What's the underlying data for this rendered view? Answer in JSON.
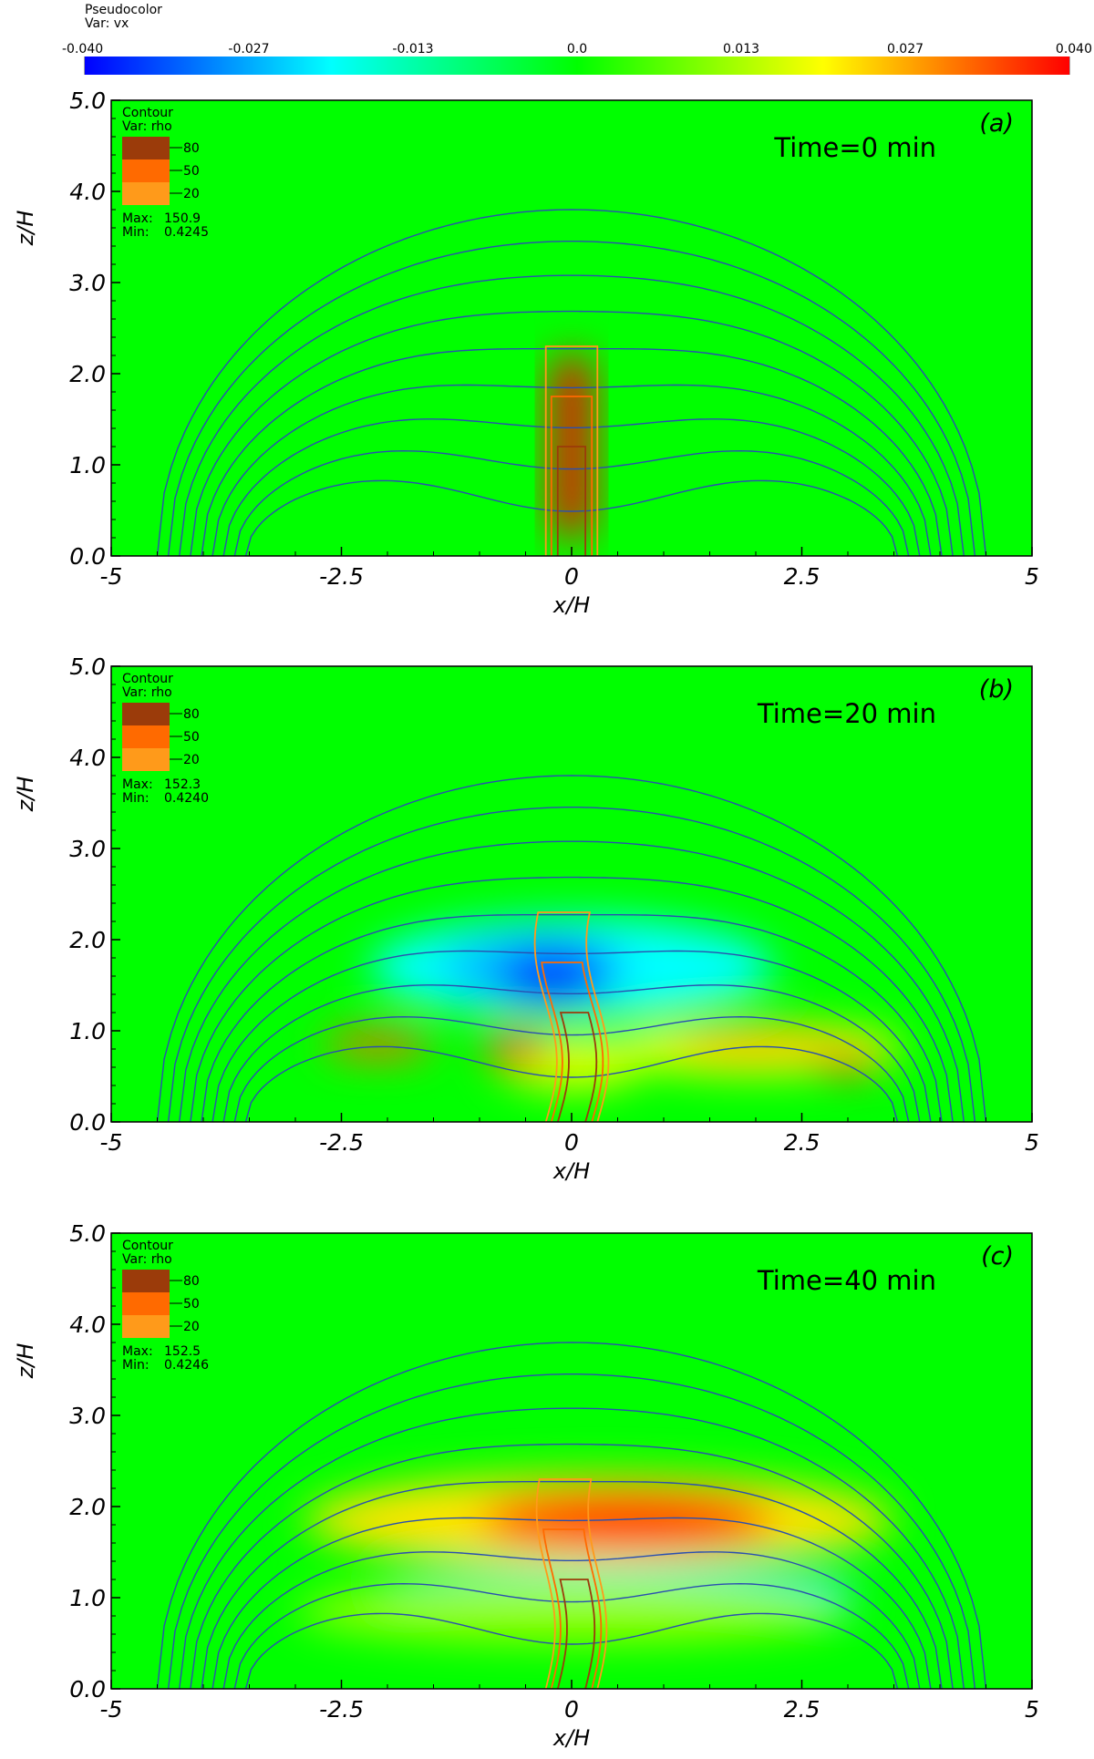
{
  "colorbar": {
    "title1": "Pseudocolor",
    "title2": "Var: vx",
    "ticks": [
      "-0.040",
      "-0.027",
      "-0.013",
      "0.0",
      "0.013",
      "0.027",
      "0.040"
    ],
    "range": [
      -0.04,
      0.04
    ],
    "colors": [
      "#0000ff",
      "#00ffff",
      "#00ff00",
      "#ffff00",
      "#ff0000"
    ]
  },
  "legend": {
    "title1": "Contour",
    "title2": "Var: rho",
    "levels": [
      "80",
      "50",
      "20"
    ],
    "level_colors": [
      "#9b3b0a",
      "#ff6a00",
      "#ff9a1a"
    ],
    "max_label": "Max:",
    "min_label": "Min:"
  },
  "chart_data": [
    {
      "type": "heatmap",
      "panel_label": "(a)",
      "time_text": "Time=0 min",
      "max": "150.9",
      "min": "0.4245",
      "xlabel": "x/H",
      "ylabel": "z/H",
      "xlim": [
        -5,
        5
      ],
      "ylim": [
        0,
        5
      ],
      "xticks": [
        "-5",
        "-2.5",
        "0",
        "2.5",
        "5"
      ],
      "yticks": [
        "0.0",
        "1.0",
        "2.0",
        "3.0",
        "4.0",
        "5.0"
      ],
      "features": [
        {
          "x": 0,
          "z": 1.2,
          "rx": 0.2,
          "rz": 1.0,
          "value": 0.04,
          "box": true
        }
      ]
    },
    {
      "type": "heatmap",
      "panel_label": "(b)",
      "time_text": "Time=20 min",
      "max": "152.3",
      "min": "0.4240",
      "xlabel": "x/H",
      "ylabel": "z/H",
      "xlim": [
        -5,
        5
      ],
      "ylim": [
        0,
        5
      ],
      "xticks": [
        "-5",
        "-2.5",
        "0",
        "2.5",
        "5"
      ],
      "yticks": [
        "0.0",
        "1.0",
        "2.0",
        "3.0",
        "4.0",
        "5.0"
      ],
      "features": [
        {
          "x": 0,
          "z": 1.7,
          "rx": 2.2,
          "rz": 0.55,
          "value": -0.02
        },
        {
          "x": -0.4,
          "z": 1.7,
          "rx": 1.0,
          "rz": 0.38,
          "value": -0.025
        },
        {
          "x": -0.2,
          "z": 1.6,
          "rx": 0.6,
          "rz": 0.3,
          "value": -0.038
        },
        {
          "x": 2.0,
          "z": 0.8,
          "rx": 1.6,
          "rz": 0.28,
          "value": 0.02
        },
        {
          "x": 0,
          "z": 0.65,
          "rx": 0.8,
          "rz": 0.3,
          "value": 0.018
        },
        {
          "x": -2.1,
          "z": 0.85,
          "rx": 0.6,
          "rz": 0.14,
          "value": 0.032
        },
        {
          "x": -0.6,
          "z": 0.8,
          "rx": 0.35,
          "rz": 0.18,
          "value": 0.035
        },
        {
          "x": 2.0,
          "z": 0.85,
          "rx": 0.9,
          "rz": 0.12,
          "value": 0.028
        },
        {
          "x": 3.0,
          "z": 0.65,
          "rx": 0.35,
          "rz": 0.12,
          "value": 0.035
        }
      ]
    },
    {
      "type": "heatmap",
      "panel_label": "(c)",
      "time_text": "Time=40 min",
      "max": "152.5",
      "min": "0.4246",
      "xlabel": "x/H",
      "ylabel": "z/H",
      "xlim": [
        -5,
        5
      ],
      "ylim": [
        0,
        5
      ],
      "xticks": [
        "-5",
        "-2.5",
        "0",
        "2.5",
        "5"
      ],
      "yticks": [
        "0.0",
        "1.0",
        "2.0",
        "3.0",
        "4.0",
        "5.0"
      ],
      "features": [
        {
          "x": 0.3,
          "z": 1.85,
          "rx": 3.2,
          "rz": 0.5,
          "value": 0.022
        },
        {
          "x": 0.6,
          "z": 1.85,
          "rx": 1.6,
          "rz": 0.32,
          "value": 0.036
        },
        {
          "x": 0.5,
          "z": 1.05,
          "rx": 2.6,
          "rz": 0.3,
          "value": -0.022
        },
        {
          "x": 0,
          "z": 0.85,
          "rx": 3.0,
          "rz": 0.35,
          "value": 0.012
        }
      ]
    }
  ]
}
